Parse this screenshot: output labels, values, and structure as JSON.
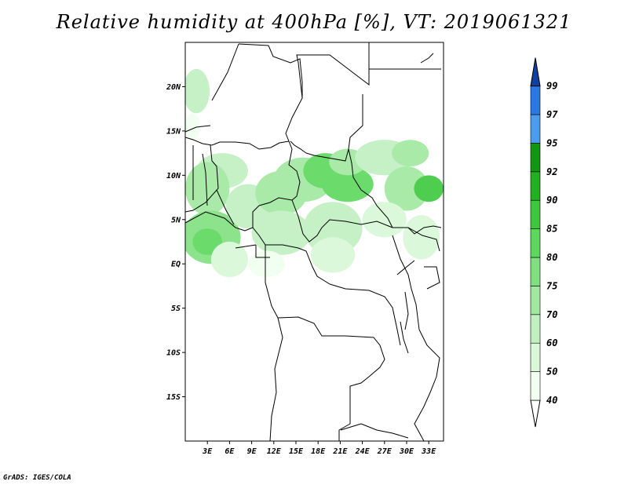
{
  "title": "Relative humidity at 400hPa [%], VT: 2019061321",
  "credit": "GrADS: IGES/COLA",
  "map": {
    "lon_range": [
      0,
      35
    ],
    "lat_range": [
      -20,
      25
    ],
    "lat_ticks": [
      {
        "value": 20,
        "label": "20N"
      },
      {
        "value": 15,
        "label": "15N"
      },
      {
        "value": 10,
        "label": "10N"
      },
      {
        "value": 5,
        "label": "5N"
      },
      {
        "value": 0,
        "label": "EQ"
      },
      {
        "value": -5,
        "label": "5S"
      },
      {
        "value": -10,
        "label": "10S"
      },
      {
        "value": -15,
        "label": "15S"
      }
    ],
    "lon_ticks": [
      {
        "value": 3,
        "label": "3E"
      },
      {
        "value": 6,
        "label": "6E"
      },
      {
        "value": 9,
        "label": "9E"
      },
      {
        "value": 12,
        "label": "12E"
      },
      {
        "value": 15,
        "label": "15E"
      },
      {
        "value": 18,
        "label": "18E"
      },
      {
        "value": 21,
        "label": "21E"
      },
      {
        "value": 24,
        "label": "24E"
      },
      {
        "value": 27,
        "label": "27E"
      },
      {
        "value": 30,
        "label": "30E"
      },
      {
        "value": 33,
        "label": "33E"
      }
    ]
  },
  "colorbar": {
    "levels": [
      {
        "label": "40",
        "color": "#f0fff0"
      },
      {
        "label": "50",
        "color": "#d8f8d8"
      },
      {
        "label": "60",
        "color": "#c0f0c0"
      },
      {
        "label": "70",
        "color": "#a0e8a0"
      },
      {
        "label": "75",
        "color": "#80e080"
      },
      {
        "label": "80",
        "color": "#5cd85c"
      },
      {
        "label": "85",
        "color": "#3cc83c"
      },
      {
        "label": "90",
        "color": "#20b020"
      },
      {
        "label": "92",
        "color": "#109810"
      },
      {
        "label": "95",
        "color": "#4a9cf0"
      },
      {
        "label": "97",
        "color": "#2a78e0"
      },
      {
        "label": "99",
        "color": "#1858c0"
      }
    ],
    "below_color": "#ffffff",
    "above_color": "#1040a0"
  },
  "humidity_patches": [
    {
      "lon": 1.5,
      "lat": 19.5,
      "rx": 1.8,
      "ry": 2.5,
      "level": 2
    },
    {
      "lon": 1.0,
      "lat": 15.5,
      "rx": 1.0,
      "ry": 1.5,
      "level": 0
    },
    {
      "lon": 5.0,
      "lat": 10.5,
      "rx": 3.5,
      "ry": 2.0,
      "level": 2
    },
    {
      "lon": 3.0,
      "lat": 8.5,
      "rx": 3.0,
      "ry": 3.0,
      "level": 3
    },
    {
      "lon": 3.5,
      "lat": 3.0,
      "rx": 4.0,
      "ry": 3.0,
      "level": 4
    },
    {
      "lon": 3.0,
      "lat": 2.5,
      "rx": 2.0,
      "ry": 1.5,
      "level": 5
    },
    {
      "lon": 8.5,
      "lat": 6.5,
      "rx": 3.0,
      "ry": 2.5,
      "level": 2
    },
    {
      "lon": 13.0,
      "lat": 8.0,
      "rx": 3.5,
      "ry": 2.5,
      "level": 3
    },
    {
      "lon": 16.0,
      "lat": 9.5,
      "rx": 4.0,
      "ry": 2.5,
      "level": 3
    },
    {
      "lon": 19.0,
      "lat": 10.5,
      "rx": 3.0,
      "ry": 2.0,
      "level": 5
    },
    {
      "lon": 22.0,
      "lat": 9.0,
      "rx": 3.5,
      "ry": 2.0,
      "level": 5
    },
    {
      "lon": 22.0,
      "lat": 11.5,
      "rx": 2.5,
      "ry": 1.5,
      "level": 3
    },
    {
      "lon": 13.0,
      "lat": 3.5,
      "rx": 4.0,
      "ry": 2.5,
      "level": 2
    },
    {
      "lon": 20.0,
      "lat": 4.0,
      "rx": 4.0,
      "ry": 3.0,
      "level": 2
    },
    {
      "lon": 20.0,
      "lat": 1.0,
      "rx": 3.0,
      "ry": 2.0,
      "level": 1
    },
    {
      "lon": 27.0,
      "lat": 12.0,
      "rx": 4.0,
      "ry": 2.0,
      "level": 2
    },
    {
      "lon": 30.0,
      "lat": 8.5,
      "rx": 3.0,
      "ry": 2.5,
      "level": 3
    },
    {
      "lon": 33.0,
      "lat": 8.5,
      "rx": 2.0,
      "ry": 1.5,
      "level": 6
    },
    {
      "lon": 30.5,
      "lat": 12.5,
      "rx": 2.5,
      "ry": 1.5,
      "level": 3
    },
    {
      "lon": 27.0,
      "lat": 5.0,
      "rx": 3.0,
      "ry": 2.0,
      "level": 1
    },
    {
      "lon": 32.0,
      "lat": 3.0,
      "rx": 2.5,
      "ry": 2.5,
      "level": 1
    },
    {
      "lon": 11.0,
      "lat": 0.0,
      "rx": 2.5,
      "ry": 1.5,
      "level": 0
    },
    {
      "lon": 6.0,
      "lat": 0.5,
      "rx": 2.5,
      "ry": 2.0,
      "level": 1
    }
  ]
}
